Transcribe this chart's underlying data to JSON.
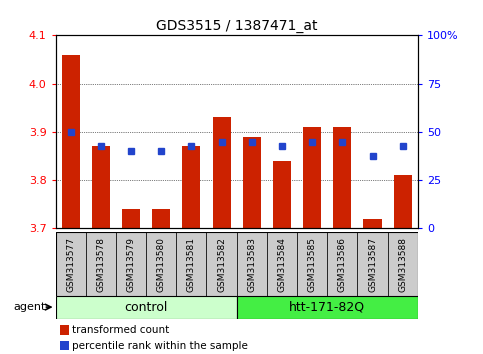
{
  "title": "GDS3515 / 1387471_at",
  "samples": [
    "GSM313577",
    "GSM313578",
    "GSM313579",
    "GSM313580",
    "GSM313581",
    "GSM313582",
    "GSM313583",
    "GSM313584",
    "GSM313585",
    "GSM313586",
    "GSM313587",
    "GSM313588"
  ],
  "red_values": [
    4.06,
    3.87,
    3.74,
    3.74,
    3.87,
    3.93,
    3.89,
    3.84,
    3.91,
    3.91,
    3.72,
    3.81
  ],
  "blue_values": [
    3.9,
    3.87,
    3.86,
    3.86,
    3.87,
    3.88,
    3.88,
    3.87,
    3.88,
    3.88,
    3.85,
    3.87
  ],
  "ymin": 3.7,
  "ymax": 4.1,
  "yticks": [
    3.7,
    3.8,
    3.9,
    4.0,
    4.1
  ],
  "right_yticks": [
    0,
    25,
    50,
    75,
    100
  ],
  "right_yticklabels": [
    "0",
    "25",
    "50",
    "75",
    "100%"
  ],
  "control_count": 6,
  "group1_label": "control",
  "group2_label": "htt-171-82Q",
  "agent_label": "agent",
  "legend1": "transformed count",
  "legend2": "percentile rank within the sample",
  "bar_color": "#cc2200",
  "blue_color": "#2244cc",
  "group1_bg": "#ccffcc",
  "group2_bg": "#44ee44",
  "tick_label_bg": "#cccccc",
  "bar_width": 0.6
}
